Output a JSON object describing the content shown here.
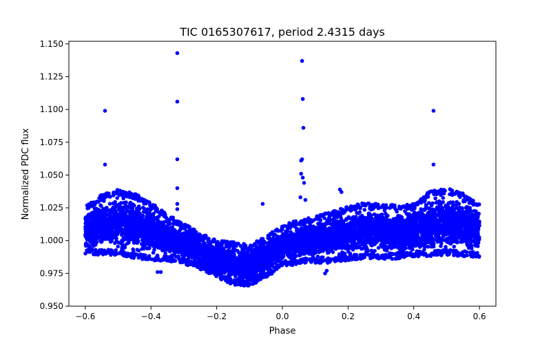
{
  "chart_data": {
    "type": "scatter",
    "title": "TIC 0165307617, period 2.4315 days",
    "xlabel": "Phase",
    "ylabel": "Normalized PDC flux",
    "xlim": [
      -0.65,
      0.65
    ],
    "ylim": [
      0.95,
      1.152
    ],
    "x_ticks": [
      -0.6,
      -0.4,
      -0.2,
      0.0,
      0.2,
      0.4,
      0.6
    ],
    "x_tick_labels": [
      "−0.6",
      "−0.4",
      "−0.2",
      "0.0",
      "0.2",
      "0.4",
      "0.6"
    ],
    "y_ticks": [
      0.95,
      0.975,
      1.0,
      1.025,
      1.05,
      1.075,
      1.1,
      1.125,
      1.15
    ],
    "y_tick_labels": [
      "0.950",
      "0.975",
      "1.000",
      "1.025",
      "1.050",
      "1.075",
      "1.100",
      "1.125",
      "1.150"
    ],
    "grid": false,
    "marker_color": "#0000ff",
    "phase_range": [
      -0.6,
      0.6
    ],
    "band_profile": {
      "x": [
        -0.6,
        -0.55,
        -0.5,
        -0.45,
        -0.4,
        -0.35,
        -0.3,
        -0.25,
        -0.2,
        -0.15,
        -0.1,
        -0.05,
        0.0,
        0.05,
        0.1,
        0.15,
        0.2,
        0.25,
        0.3,
        0.35,
        0.4,
        0.45,
        0.5,
        0.55,
        0.6
      ],
      "low": [
        0.99,
        0.989,
        0.989,
        0.986,
        0.985,
        0.984,
        0.982,
        0.978,
        0.972,
        0.966,
        0.965,
        0.972,
        0.98,
        0.982,
        0.983,
        0.983,
        0.985,
        0.986,
        0.986,
        0.986,
        0.988,
        0.988,
        0.989,
        0.988,
        0.987
      ],
      "high": [
        1.027,
        1.035,
        1.039,
        1.036,
        1.029,
        1.02,
        1.013,
        1.006,
        1.0,
        0.999,
        0.997,
        1.003,
        1.012,
        1.016,
        1.019,
        1.022,
        1.026,
        1.029,
        1.028,
        1.027,
        1.028,
        1.038,
        1.04,
        1.036,
        1.028
      ]
    },
    "outliers": [
      {
        "x": -0.54,
        "y": 1.099
      },
      {
        "x": -0.54,
        "y": 1.058
      },
      {
        "x": -0.32,
        "y": 1.143
      },
      {
        "x": -0.32,
        "y": 1.106
      },
      {
        "x": -0.32,
        "y": 1.062
      },
      {
        "x": -0.32,
        "y": 1.04
      },
      {
        "x": -0.32,
        "y": 1.028
      },
      {
        "x": -0.32,
        "y": 1.024
      },
      {
        "x": -0.06,
        "y": 1.028
      },
      {
        "x": 0.06,
        "y": 1.137
      },
      {
        "x": 0.062,
        "y": 1.108
      },
      {
        "x": 0.064,
        "y": 1.086
      },
      {
        "x": 0.06,
        "y": 1.062
      },
      {
        "x": 0.057,
        "y": 1.061
      },
      {
        "x": 0.057,
        "y": 1.051
      },
      {
        "x": 0.062,
        "y": 1.048
      },
      {
        "x": 0.066,
        "y": 1.044
      },
      {
        "x": 0.055,
        "y": 1.033
      },
      {
        "x": 0.07,
        "y": 1.031
      },
      {
        "x": 0.175,
        "y": 1.039
      },
      {
        "x": 0.18,
        "y": 1.037
      },
      {
        "x": 0.46,
        "y": 1.099
      },
      {
        "x": 0.46,
        "y": 1.058
      },
      {
        "x": -0.38,
        "y": 0.976
      },
      {
        "x": -0.37,
        "y": 0.976
      },
      {
        "x": 0.13,
        "y": 0.975
      },
      {
        "x": 0.135,
        "y": 0.977
      }
    ]
  }
}
